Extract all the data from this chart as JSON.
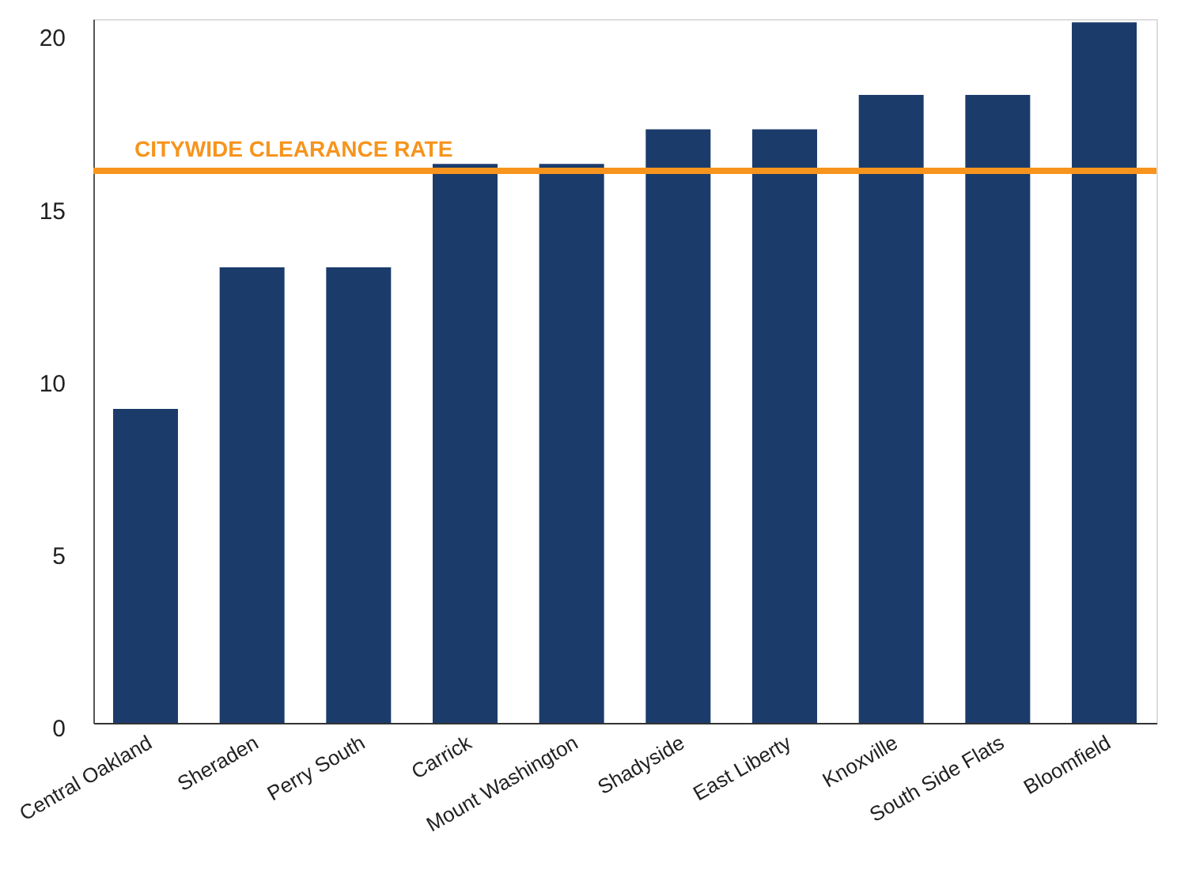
{
  "chart_data": {
    "type": "bar",
    "categories": [
      "Central Oakland",
      "Sheraden",
      "Perry South",
      "Carrick",
      "Mount Washington",
      "Shadyside",
      "East Liberty",
      "Knoxville",
      "South Side Flats",
      "Bloomfield"
    ],
    "values": [
      9.1,
      13.2,
      13.2,
      16.2,
      16.2,
      17.2,
      17.2,
      18.2,
      18.2,
      20.3
    ],
    "color": "#1b3c6b",
    "ylim": [
      0,
      20.4
    ],
    "yticks": [
      0,
      5,
      10,
      15,
      20
    ],
    "grid": false,
    "ref_lines": [
      {
        "axis": "y",
        "value": 16,
        "label": "CITYWIDE CLEARANCE RATE",
        "color": "#f7941d"
      }
    ]
  }
}
